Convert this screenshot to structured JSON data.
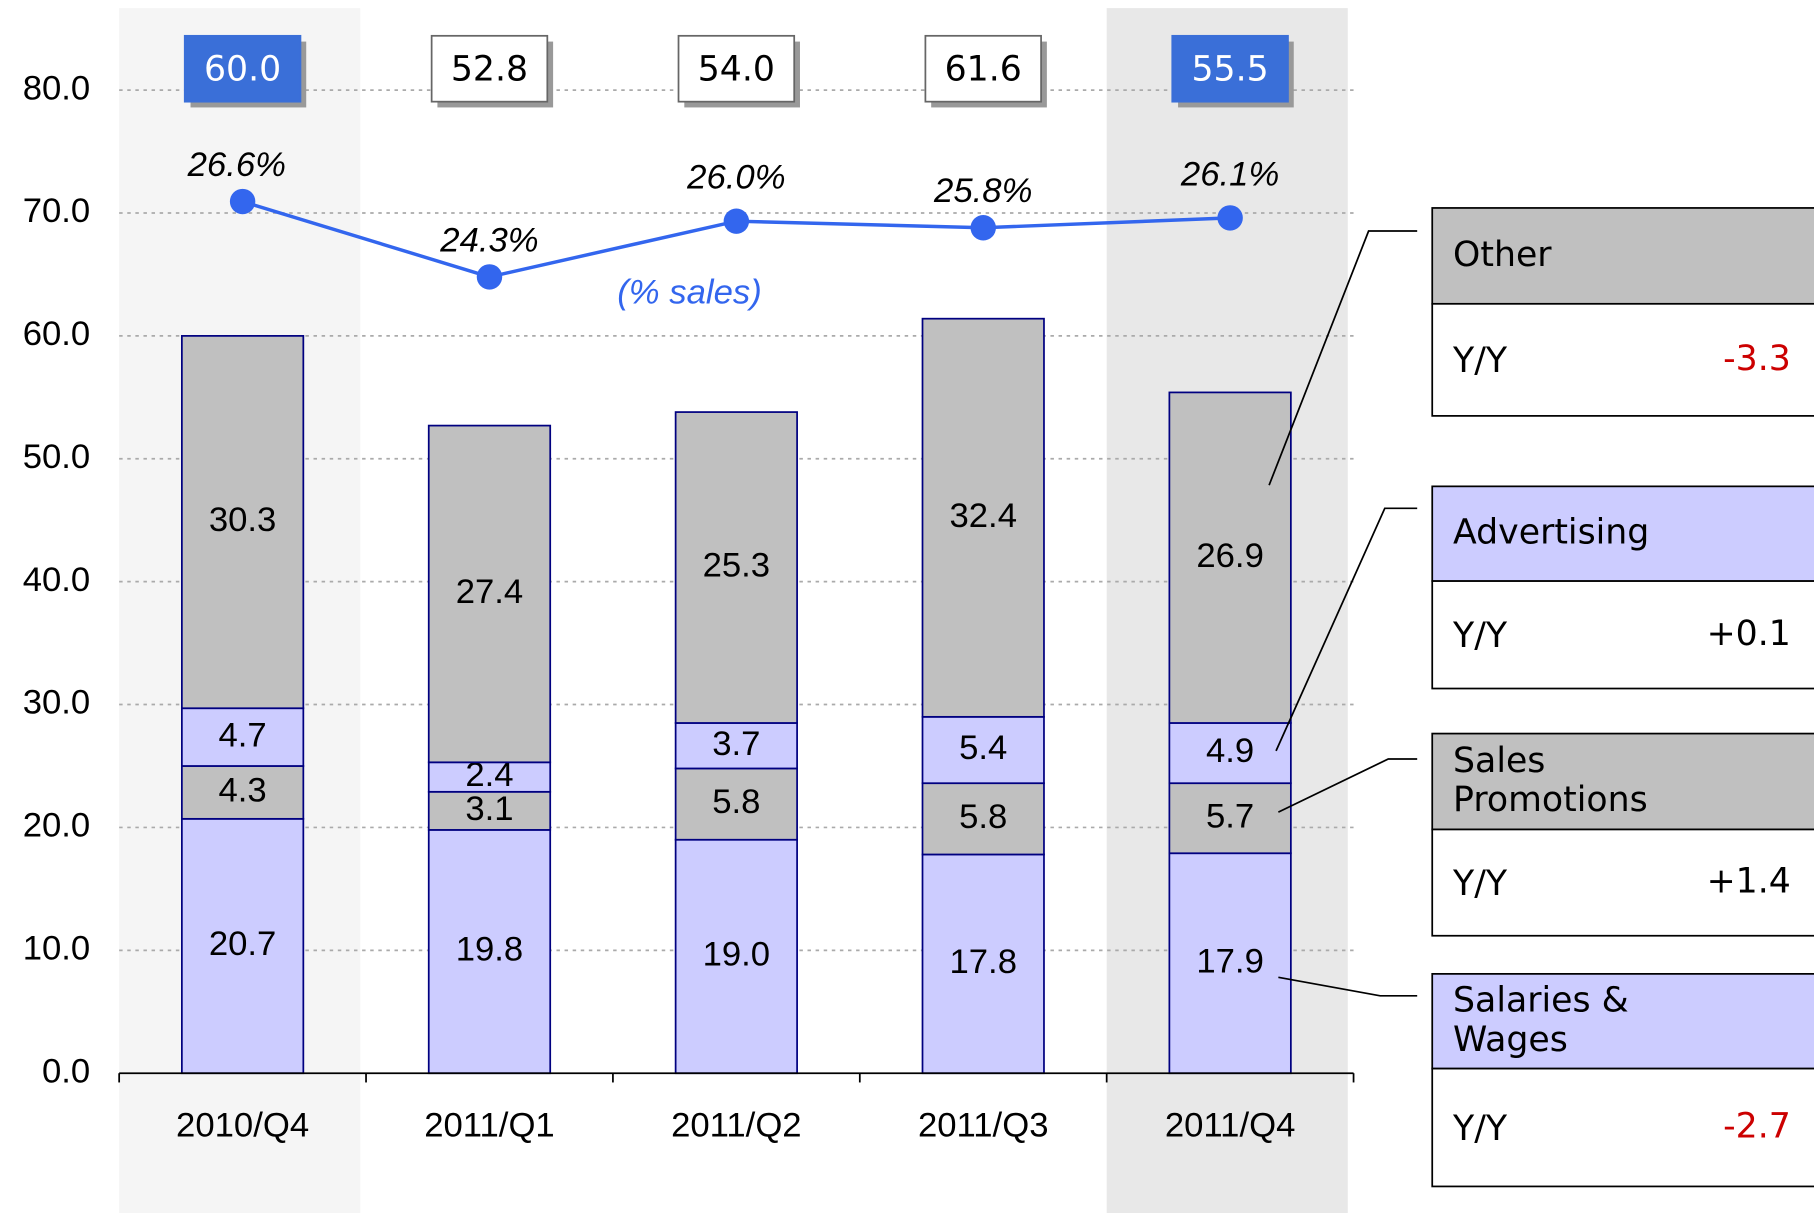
{
  "chart_data": {
    "type": "stacked_bar_line",
    "categories": [
      "2010/Q4",
      "2011/Q1",
      "2011/Q2",
      "2011/Q3",
      "2011/Q4"
    ],
    "highlight": [
      "2010/Q4",
      "2011/Q4"
    ],
    "series": [
      {
        "name": "Salaries & Wages",
        "color": "#ccccff",
        "values": [
          20.7,
          19.8,
          19.0,
          17.8,
          17.9
        ],
        "value_labels": [
          "20.7",
          "19.8",
          "19.0",
          "17.8",
          "17.9"
        ],
        "yoy": -2.7,
        "yoy_label": "-2.7"
      },
      {
        "name": "Sales Promotions",
        "color": "#c0c0c0",
        "values": [
          4.3,
          3.1,
          5.8,
          5.8,
          5.7
        ],
        "value_labels": [
          "4.3",
          "3.1",
          "5.8",
          "5.8",
          "5.7"
        ],
        "yoy": 1.4,
        "yoy_label": "+1.4"
      },
      {
        "name": "Advertising",
        "color": "#ccccff",
        "values": [
          4.7,
          2.4,
          3.7,
          5.4,
          4.9
        ],
        "value_labels": [
          "4.7",
          "2.4",
          "3.7",
          "5.4",
          "4.9"
        ],
        "yoy": 0.1,
        "yoy_label": "+0.1"
      },
      {
        "name": "Other",
        "color": "#c0c0c0",
        "values": [
          30.3,
          27.4,
          25.3,
          32.4,
          26.9
        ],
        "value_labels": [
          "30.3",
          "27.4",
          "25.3",
          "32.4",
          "26.9"
        ],
        "yoy": -3.3,
        "yoy_label": "-3.3"
      }
    ],
    "totals": [
      60.0,
      52.8,
      54.0,
      61.6,
      55.5
    ],
    "totals_labels": [
      "60.0",
      "52.8",
      "54.0",
      "61.6",
      "55.5"
    ],
    "line": {
      "name": "(% sales)",
      "color": "#3366ee",
      "axis": "y2",
      "values": [
        26.6,
        24.3,
        26.0,
        25.8,
        26.1
      ],
      "value_labels": [
        "26.6%",
        "24.3%",
        "26.0%",
        "25.8%",
        "26.1%"
      ]
    },
    "yoy_title": "Y/Y",
    "ylim": [
      0,
      80
    ],
    "yticks": [
      {
        "value": 0,
        "label": "0.0"
      },
      {
        "value": 10,
        "label": "10.0"
      },
      {
        "value": 20,
        "label": "20.0"
      },
      {
        "value": 30,
        "label": "30.0"
      },
      {
        "value": 40,
        "label": "40.0"
      },
      {
        "value": 50,
        "label": "50.0"
      },
      {
        "value": 60,
        "label": "60.0"
      },
      {
        "value": 70,
        "label": "70.0"
      },
      {
        "value": 80,
        "label": "80.0"
      }
    ],
    "y2lim": [
      0,
      30
    ],
    "grid": true
  }
}
